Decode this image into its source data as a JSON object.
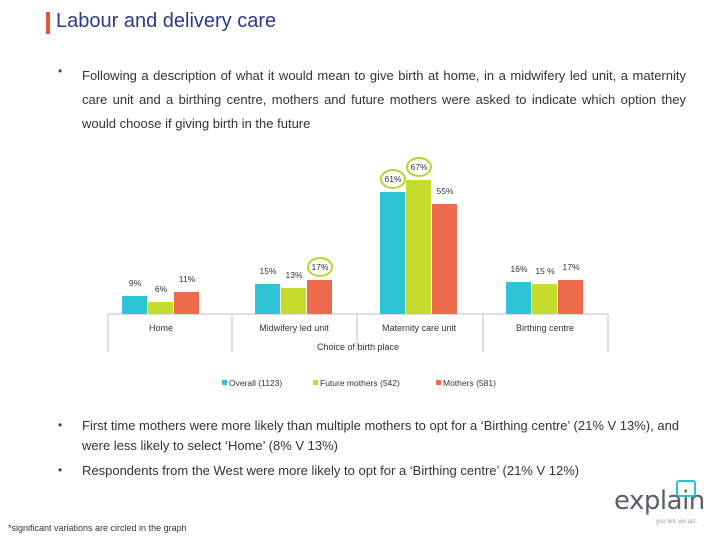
{
  "title": "Labour and delivery care",
  "intro": "Following a description of what it would mean to give birth at home, in a midwifery led unit, a maternity care unit and a birthing centre, mothers and future mothers were asked to indicate which option they would choose if giving birth in the future",
  "bullets": [
    "First time mothers were more likely than multiple mothers to opt for a ‘Birthing centre’ (21% V 13%), and were less likely to select ‘Home’ (8% V 13%)",
    "Respondents from the West were more likely to opt for a ‘Birthing centre’ (21% V 12%)"
  ],
  "bullet_symbol": "•",
  "footnote": "*significant variations are circled in the graph",
  "logo": {
    "word": "explain",
    "tagline": "you tell, we act.",
    "accent": "#29c4d4"
  },
  "colors": {
    "title": "#2b3a8c",
    "title_bar": "#e8553f",
    "circle": "#b5d334"
  },
  "chart_data": {
    "type": "bar",
    "xlabel": "Choice of birth place",
    "categories": [
      "Home",
      "Midwifery led unit",
      "Maternity care unit",
      "Birthing centre"
    ],
    "series": [
      {
        "name": "Overall (1123)",
        "color": "#2ec4d6",
        "values": [
          9,
          15,
          61,
          16
        ],
        "labels": [
          "9%",
          "15%",
          "61%",
          "16%"
        ]
      },
      {
        "name": "Future mothers (542)",
        "color": "#c6dc2c",
        "values": [
          6,
          13,
          67,
          15
        ],
        "labels": [
          "6%",
          "13%",
          "67%",
          "15 %"
        ]
      },
      {
        "name": "Mothers (581)",
        "color": "#ee6a4c",
        "values": [
          11,
          17,
          55,
          17
        ],
        "labels": [
          "11%",
          "17%",
          "55%",
          "17%"
        ]
      }
    ],
    "circled": [
      [
        2,
        0
      ],
      [
        2,
        1
      ],
      [
        1,
        2
      ]
    ],
    "legend_position": "bottom",
    "grid": false
  }
}
